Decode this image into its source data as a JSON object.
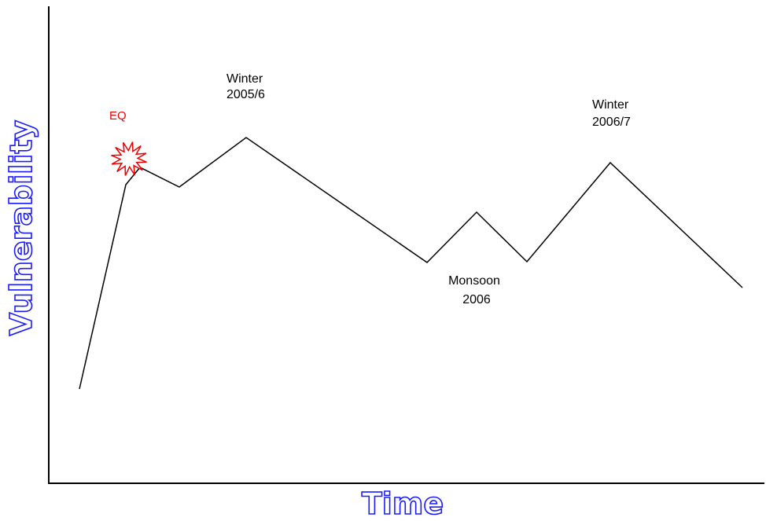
{
  "axis_labels": {
    "y": "Vulnerability",
    "x": "Time"
  },
  "annotations": {
    "eq": "EQ",
    "winter_2005": [
      "Winter",
      "2005/6"
    ],
    "monsoon_2006": [
      "Monsoon",
      "2006"
    ],
    "winter_2006": [
      "Winter",
      "2006/7"
    ]
  }
}
